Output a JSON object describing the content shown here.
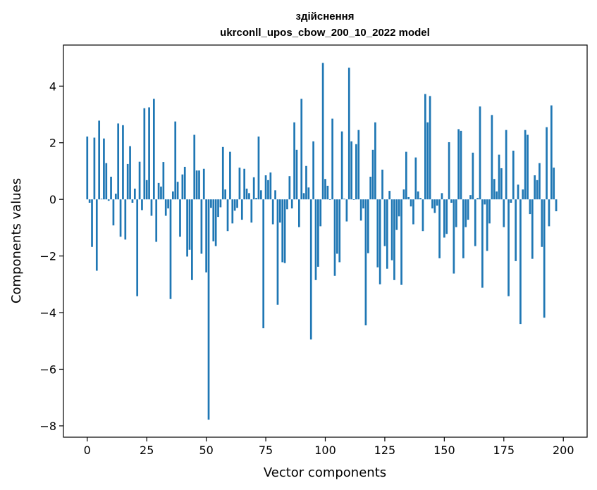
{
  "chart_data": {
    "type": "bar",
    "title_line1": "здійснення",
    "title_line2": "ukrconll_upos_cbow_200_10_2022 model",
    "xlabel": "Vector components",
    "ylabel": "Components values",
    "xlim": [
      -10,
      210
    ],
    "ylim": [
      -8.4,
      5.45
    ],
    "xticks": [
      0,
      25,
      50,
      75,
      100,
      125,
      150,
      175,
      200
    ],
    "yticks": [
      -8,
      -6,
      -4,
      -2,
      0,
      2,
      4
    ],
    "ytick_labels": [
      "−8",
      "−6",
      "−4",
      "−2",
      "0",
      "2",
      "4"
    ],
    "bar_color": "#1f77b4",
    "grid": false,
    "values": [
      2.22,
      -0.12,
      -1.68,
      2.18,
      -2.52,
      2.78,
      0.02,
      2.15,
      1.28,
      -0.05,
      0.8,
      -0.92,
      0.2,
      2.68,
      -1.32,
      2.62,
      -1.42,
      1.25,
      1.88,
      -0.12,
      0.38,
      -3.42,
      1.33,
      -0.38,
      3.22,
      0.68,
      3.25,
      -0.58,
      3.55,
      -1.5,
      0.58,
      0.45,
      1.32,
      -0.58,
      -0.32,
      -3.52,
      0.28,
      2.75,
      0.62,
      -1.32,
      0.88,
      1.15,
      -2.02,
      -1.78,
      -2.85,
      2.28,
      1.02,
      1.02,
      -1.92,
      1.08,
      -2.58,
      -7.78,
      -0.3,
      -1.48,
      -1.65,
      -0.62,
      -0.28,
      1.85,
      0.35,
      -1.12,
      1.68,
      -0.85,
      -0.4,
      -0.3,
      1.12,
      -0.72,
      1.08,
      0.38,
      0.22,
      -0.82,
      0.78,
      0.05,
      2.22,
      0.32,
      -4.55,
      0.85,
      0.68,
      0.95,
      -0.88,
      0.32,
      -3.72,
      -0.82,
      -2.22,
      -2.25,
      -0.35,
      0.82,
      -0.32,
      2.72,
      1.75,
      -0.98,
      3.55,
      0.22,
      1.18,
      0.42,
      -4.95,
      2.05,
      -2.85,
      -2.38,
      -0.95,
      4.82,
      0.72,
      0.48,
      -0.02,
      2.85,
      -2.7,
      -1.92,
      -2.22,
      2.4,
      0.02,
      -0.78,
      4.65,
      2.05,
      -0.02,
      1.95,
      2.45,
      -0.75,
      -0.32,
      -4.45,
      -1.9,
      0.8,
      1.75,
      2.72,
      -2.4,
      -3.0,
      1.05,
      -1.65,
      -2.45,
      0.3,
      -2.15,
      -2.85,
      -1.08,
      -0.6,
      -3.02,
      0.35,
      1.68,
      0.08,
      -0.25,
      -0.88,
      1.48,
      0.28,
      0.05,
      -1.12,
      3.72,
      2.72,
      3.65,
      -0.32,
      -0.48,
      -0.22,
      -2.08,
      0.22,
      -1.35,
      -1.22,
      2.02,
      -0.12,
      -2.62,
      -0.98,
      2.48,
      2.42,
      -2.08,
      -0.98,
      -0.72,
      0.15,
      1.65,
      -1.65,
      0.05,
      3.28,
      -3.12,
      -0.18,
      -1.82,
      -0.85,
      2.98,
      0.72,
      0.28,
      1.58,
      1.1,
      -0.98,
      2.45,
      -3.42,
      -0.12,
      1.72,
      -2.18,
      0.52,
      -4.4,
      0.35,
      2.45,
      2.28,
      -0.52,
      -2.1,
      0.85,
      0.68,
      1.28,
      -1.68,
      -4.18,
      2.55,
      -0.95,
      3.32,
      1.12,
      -0.42
    ]
  }
}
